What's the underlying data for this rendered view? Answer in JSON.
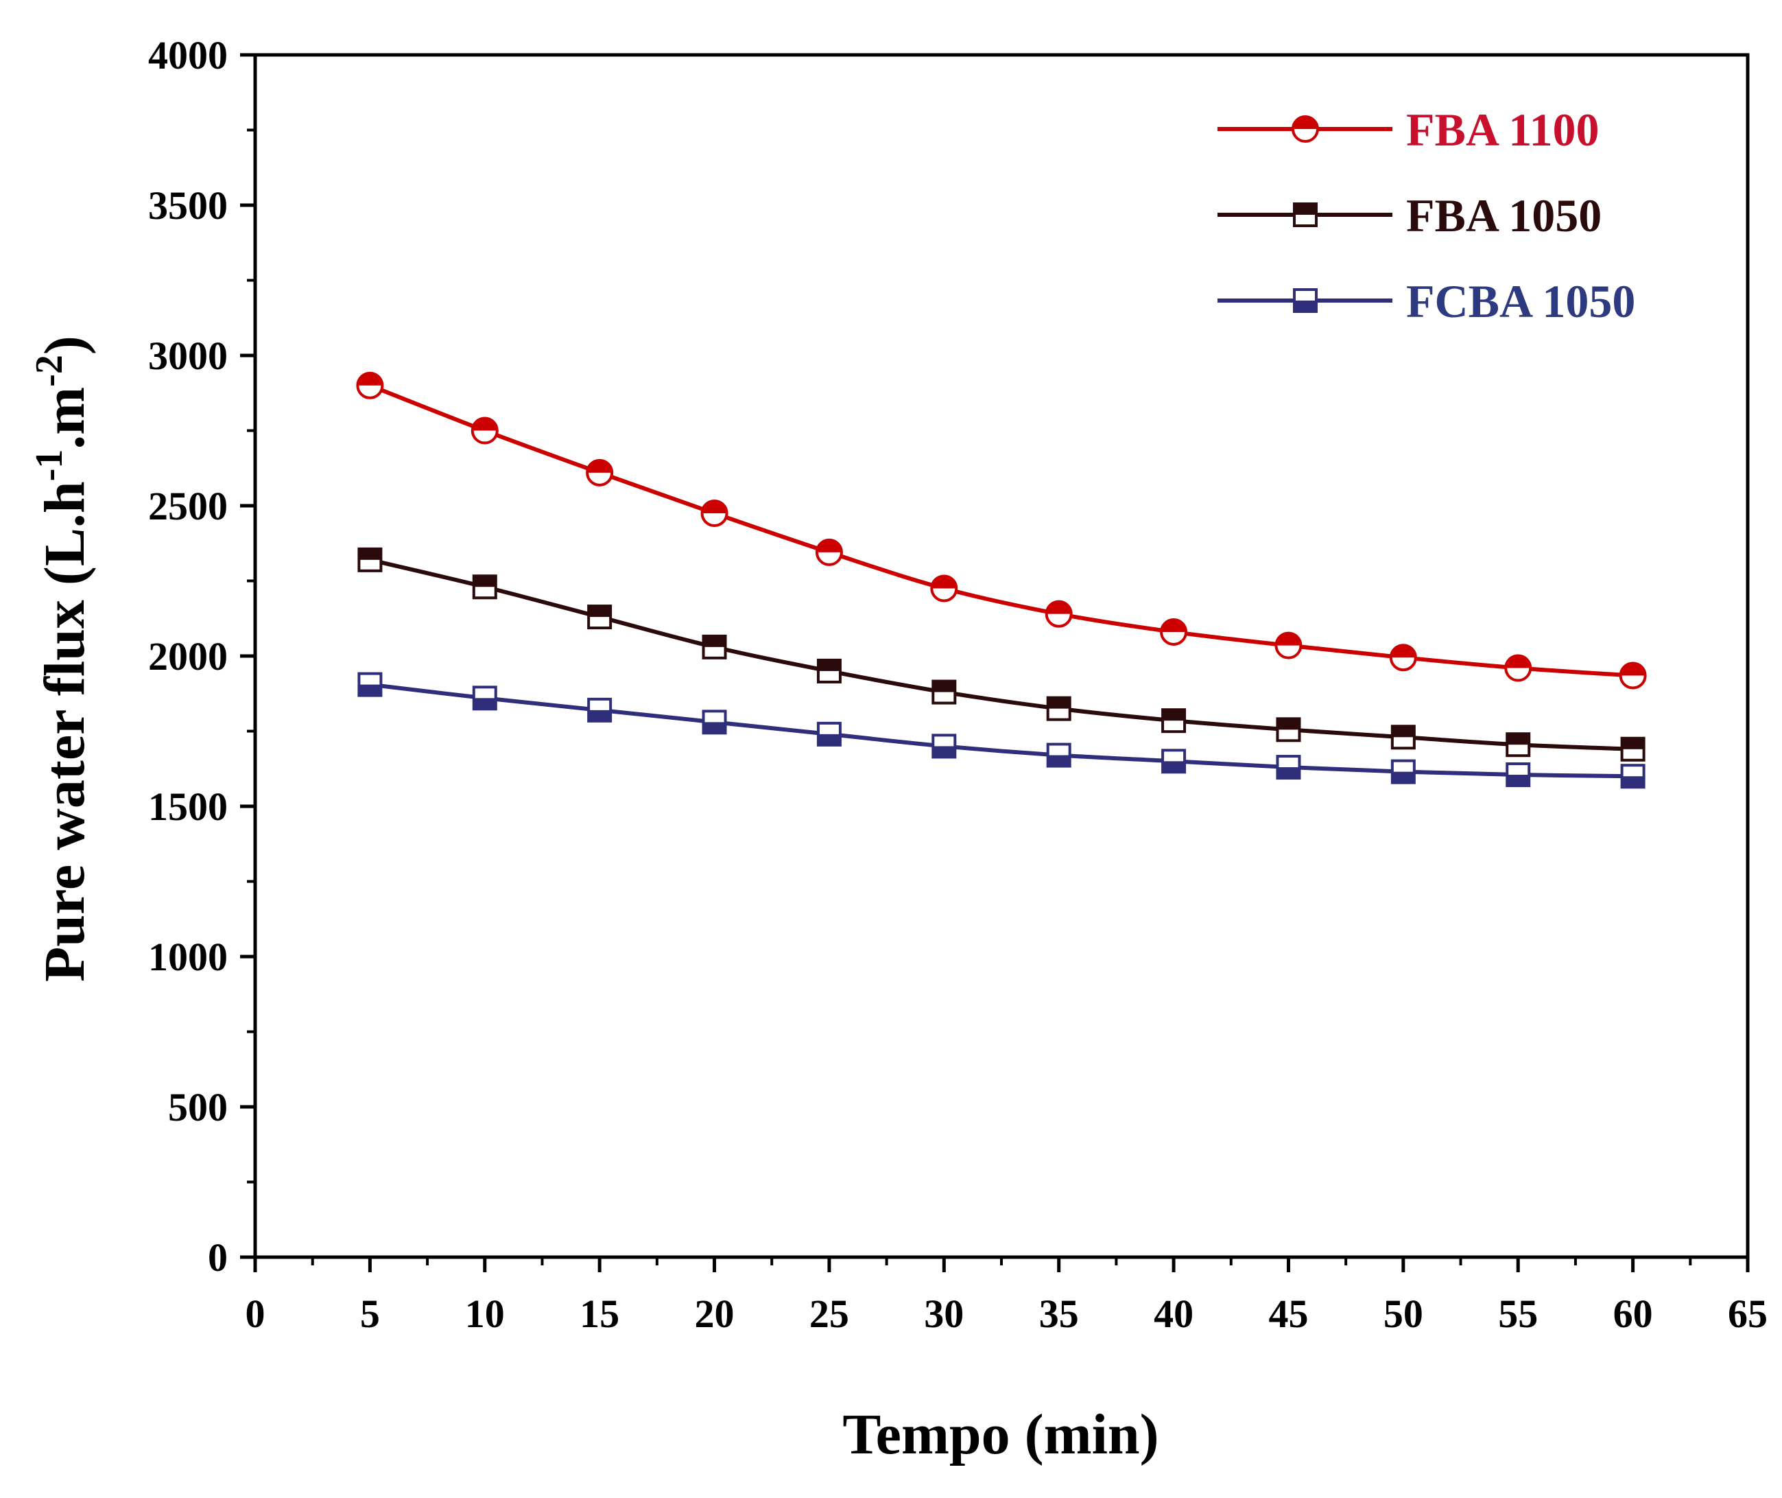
{
  "chart_data": {
    "type": "line",
    "title": "",
    "xlabel": "Tempo (min)",
    "ylabel": {
      "base": "Pure water flux (L.h",
      "sup1": "-1",
      "mid": ".m",
      "sup2": "-2",
      "end": ")"
    },
    "xlim": [
      0,
      65
    ],
    "ylim": [
      0,
      4000
    ],
    "xticks": [
      0,
      5,
      10,
      15,
      20,
      25,
      30,
      35,
      40,
      45,
      50,
      55,
      60,
      65
    ],
    "yticks": [
      0,
      500,
      1000,
      1500,
      2000,
      2500,
      3000,
      3500,
      4000
    ],
    "x": [
      5,
      10,
      15,
      20,
      25,
      30,
      35,
      40,
      45,
      50,
      55,
      60
    ],
    "legend_position": "top-right",
    "series": [
      {
        "name": "FBA 1100",
        "color": "#cc0000",
        "text_color": "#c8102e",
        "marker": "half-filled-circle",
        "values": [
          2900,
          2750,
          2610,
          2475,
          2345,
          2225,
          2140,
          2080,
          2035,
          1995,
          1960,
          1935
        ]
      },
      {
        "name": "FBA 1050",
        "color": "#2a0a0a",
        "text_color": "#2a0a0a",
        "marker": "half-filled-square-top",
        "values": [
          2320,
          2230,
          2130,
          2030,
          1950,
          1880,
          1825,
          1785,
          1755,
          1730,
          1705,
          1690
        ]
      },
      {
        "name": "FCBA 1050",
        "color": "#2e2e7a",
        "text_color": "#2e3a80",
        "marker": "half-filled-square-bottom",
        "values": [
          1905,
          1860,
          1820,
          1780,
          1740,
          1700,
          1670,
          1650,
          1630,
          1615,
          1605,
          1600
        ]
      }
    ]
  }
}
